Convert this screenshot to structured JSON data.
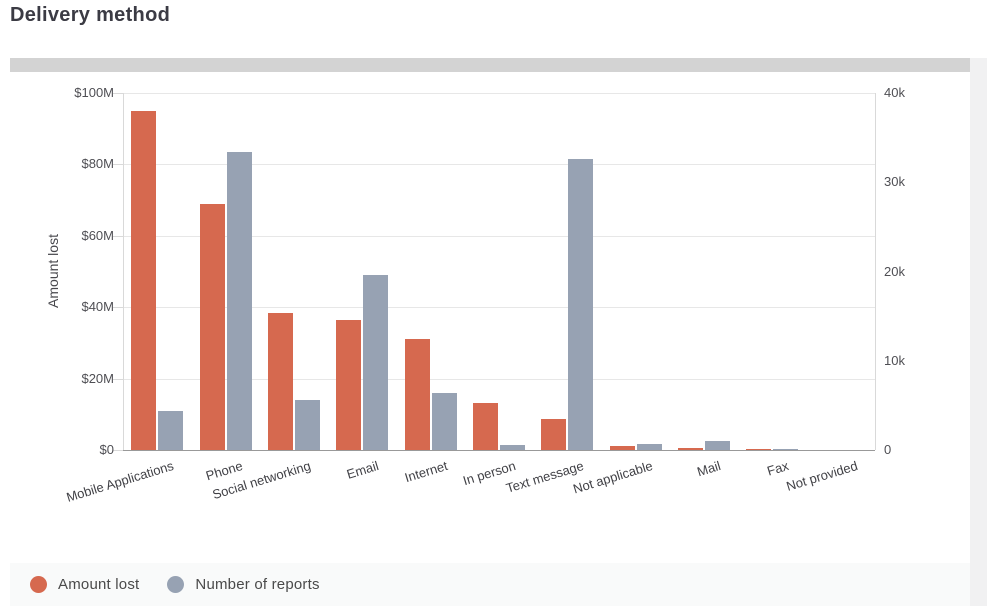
{
  "page": {
    "title": "Delivery method"
  },
  "chart_data": {
    "type": "bar",
    "title": "Delivery method",
    "categories": [
      "Mobile Applications",
      "Phone",
      "Social networking",
      "Email",
      "Internet",
      "In person",
      "Text message",
      "Not applicable",
      "Mail",
      "Fax",
      "Not provided"
    ],
    "series": [
      {
        "name": "Amount lost",
        "axis": "left",
        "color": "#d6694f",
        "unit": "USD millions",
        "values": [
          95,
          69,
          38.5,
          36.3,
          31,
          13.3,
          8.8,
          1.2,
          0.5,
          0.2,
          0
        ]
      },
      {
        "name": "Number of reports",
        "axis": "right",
        "color": "#97a2b3",
        "unit": "reports",
        "values": [
          4400,
          33400,
          5650,
          19600,
          6400,
          600,
          32600,
          700,
          1000,
          30,
          0
        ]
      }
    ],
    "left_axis": {
      "label": "Amount lost",
      "ticks": [
        "$0",
        "$20M",
        "$40M",
        "$60M",
        "$80M",
        "$100M"
      ],
      "min": 0,
      "max": 100
    },
    "right_axis": {
      "label": "Number of reports",
      "ticks": [
        "0",
        "10k",
        "20k",
        "30k",
        "40k"
      ],
      "min": 0,
      "max": 40000
    },
    "grid": true,
    "legend_position": "bottom-left"
  },
  "legend": {
    "items": [
      {
        "label": "Amount lost",
        "color": "#d6694f"
      },
      {
        "label": "Number of reports",
        "color": "#97a2b3"
      }
    ]
  }
}
